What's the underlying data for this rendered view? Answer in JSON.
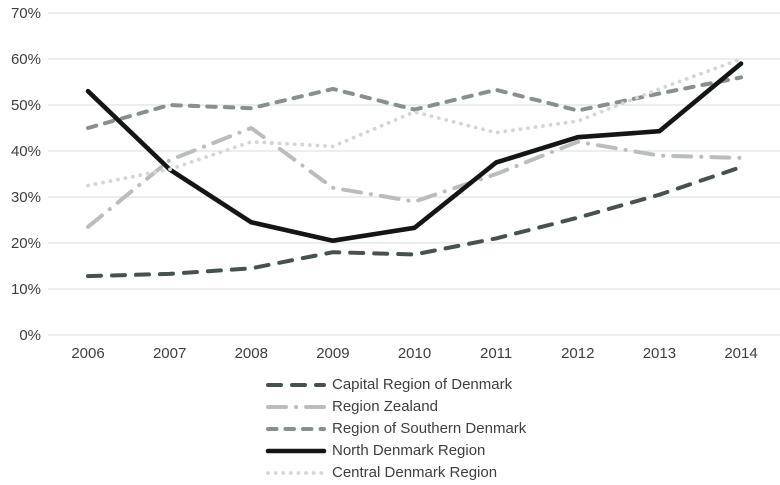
{
  "chart_data": {
    "type": "line",
    "title": "",
    "xlabel": "",
    "ylabel": "",
    "categories": [
      "2006",
      "2007",
      "2008",
      "2009",
      "2010",
      "2011",
      "2012",
      "2013",
      "2014"
    ],
    "yticks": [
      "0%",
      "10%",
      "20%",
      "30%",
      "40%",
      "50%",
      "60%",
      "70%"
    ],
    "ylim": [
      0,
      70
    ],
    "grid": true,
    "legend_position": "bottom",
    "series": [
      {
        "name": "Capital Region of Denmark",
        "style": "dashed-long",
        "color": "#47514f",
        "values": [
          12.8,
          13.3,
          14.5,
          18,
          17.5,
          21,
          25.5,
          30.5,
          36.5
        ]
      },
      {
        "name": "Region Zealand",
        "style": "dash-dot",
        "color": "#b9bdbb",
        "values": [
          23.5,
          38,
          45,
          32,
          29,
          35,
          42,
          39,
          38.5
        ]
      },
      {
        "name": "Region of Southern Denmark",
        "style": "dashed",
        "color": "#87908e",
        "values": [
          45,
          50,
          49.3,
          53.5,
          49,
          53.3,
          48.8,
          52.5,
          56
        ]
      },
      {
        "name": "North Denmark Region",
        "style": "solid",
        "color": "#131516",
        "values": [
          53,
          36,
          24.5,
          20.5,
          23.3,
          37.5,
          43,
          44.3,
          59
        ]
      },
      {
        "name": "Central Denmark Region",
        "style": "dotted",
        "color": "#d4d6d5",
        "values": [
          32.5,
          36,
          42,
          41,
          48.5,
          44,
          46.5,
          53.5,
          60
        ]
      }
    ]
  }
}
